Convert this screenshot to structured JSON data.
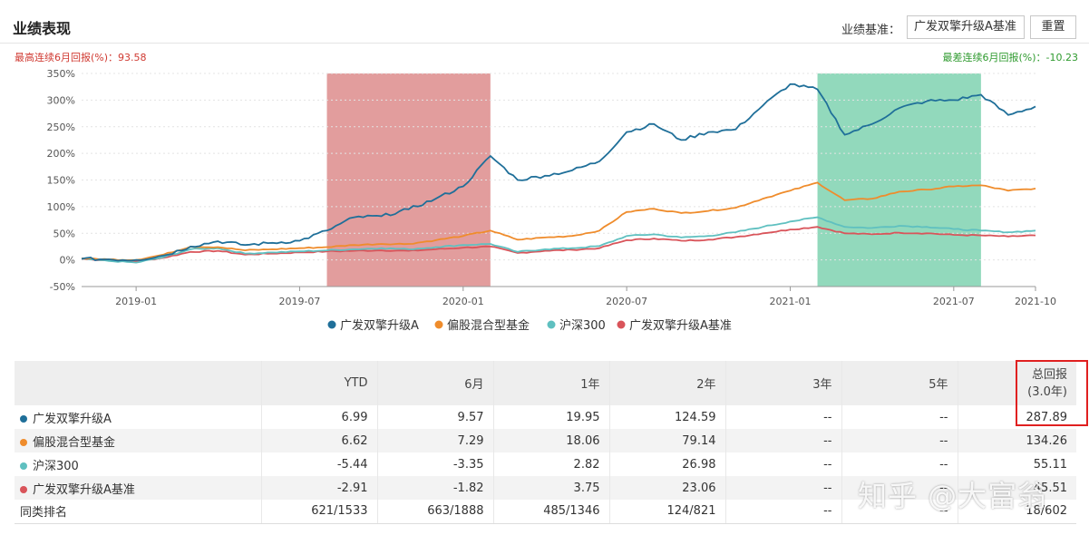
{
  "header": {
    "title": "业绩表现",
    "benchmark_label": "业绩基准：",
    "benchmark_value": "广发双擎升级A基准",
    "reset_label": "重置"
  },
  "stats": {
    "best": "最高连续6月回报(%)：93.58",
    "worst": "最差连续6月回报(%)：-10.23"
  },
  "colors": {
    "fund": "#1f6f99",
    "peer": "#ef8c2c",
    "hs300": "#5fc0c0",
    "bench": "#d9545a",
    "best_band": "#dd8c8c",
    "worst_band": "#7fd2b0"
  },
  "chart_data": {
    "type": "line",
    "title": "",
    "xlabel": "",
    "ylabel": "",
    "x_ticks": [
      "2019-01",
      "2019-07",
      "2020-01",
      "2020-07",
      "2021-01",
      "2021-07",
      "2021-10"
    ],
    "y_ticks": [
      "350%",
      "300%",
      "250%",
      "200%",
      "150%",
      "100%",
      "50%",
      "0%",
      "-50%"
    ],
    "ylim": [
      -50,
      350
    ],
    "xlim": [
      "2018-11",
      "2021-10"
    ],
    "grid": true,
    "legend_position": "bottom",
    "highlight_bands": [
      {
        "label": "best 6 months",
        "start": "2019-08",
        "end": "2020-02"
      },
      {
        "label": "worst 6 months",
        "start": "2021-02",
        "end": "2021-08"
      }
    ],
    "series": [
      {
        "name": "广发双擎升级A",
        "color": "#1f6f99",
        "points": [
          [
            "2018-11",
            2
          ],
          [
            "2018-12",
            1
          ],
          [
            "2019-01",
            0
          ],
          [
            "2019-02",
            8
          ],
          [
            "2019-03",
            25
          ],
          [
            "2019-04",
            35
          ],
          [
            "2019-05",
            28
          ],
          [
            "2019-06",
            32
          ],
          [
            "2019-07",
            36
          ],
          [
            "2019-08",
            55
          ],
          [
            "2019-09",
            80
          ],
          [
            "2019-10",
            82
          ],
          [
            "2019-11",
            95
          ],
          [
            "2019-12",
            115
          ],
          [
            "2020-01",
            138
          ],
          [
            "2020-02",
            195
          ],
          [
            "2020-03",
            150
          ],
          [
            "2020-04",
            158
          ],
          [
            "2020-05",
            168
          ],
          [
            "2020-06",
            185
          ],
          [
            "2020-07",
            240
          ],
          [
            "2020-08",
            255
          ],
          [
            "2020-09",
            225
          ],
          [
            "2020-10",
            240
          ],
          [
            "2020-11",
            245
          ],
          [
            "2020-12",
            290
          ],
          [
            "2021-01",
            330
          ],
          [
            "2021-02",
            320
          ],
          [
            "2021-03",
            235
          ],
          [
            "2021-04",
            255
          ],
          [
            "2021-05",
            285
          ],
          [
            "2021-06",
            298
          ],
          [
            "2021-07",
            300
          ],
          [
            "2021-08",
            310
          ],
          [
            "2021-09",
            272
          ],
          [
            "2021-10",
            288
          ]
        ]
      },
      {
        "name": "偏股混合型基金",
        "color": "#ef8c2c",
        "points": [
          [
            "2018-11",
            3
          ],
          [
            "2018-12",
            1
          ],
          [
            "2019-01",
            0
          ],
          [
            "2019-02",
            10
          ],
          [
            "2019-03",
            25
          ],
          [
            "2019-04",
            24
          ],
          [
            "2019-05",
            18
          ],
          [
            "2019-06",
            20
          ],
          [
            "2019-07",
            22
          ],
          [
            "2019-08",
            24
          ],
          [
            "2019-09",
            28
          ],
          [
            "2019-10",
            30
          ],
          [
            "2019-11",
            30
          ],
          [
            "2019-12",
            37
          ],
          [
            "2020-01",
            45
          ],
          [
            "2020-02",
            55
          ],
          [
            "2020-03",
            38
          ],
          [
            "2020-04",
            42
          ],
          [
            "2020-05",
            45
          ],
          [
            "2020-06",
            55
          ],
          [
            "2020-07",
            90
          ],
          [
            "2020-08",
            96
          ],
          [
            "2020-09",
            88
          ],
          [
            "2020-10",
            92
          ],
          [
            "2020-11",
            98
          ],
          [
            "2020-12",
            115
          ],
          [
            "2021-01",
            130
          ],
          [
            "2021-02",
            145
          ],
          [
            "2021-03",
            112
          ],
          [
            "2021-04",
            115
          ],
          [
            "2021-05",
            128
          ],
          [
            "2021-06",
            132
          ],
          [
            "2021-07",
            138
          ],
          [
            "2021-08",
            140
          ],
          [
            "2021-09",
            130
          ],
          [
            "2021-10",
            134
          ]
        ]
      },
      {
        "name": "沪深300",
        "color": "#5fc0c0",
        "points": [
          [
            "2018-11",
            2
          ],
          [
            "2018-12",
            -2
          ],
          [
            "2019-01",
            -5
          ],
          [
            "2019-02",
            5
          ],
          [
            "2019-03",
            20
          ],
          [
            "2019-04",
            22
          ],
          [
            "2019-05",
            12
          ],
          [
            "2019-06",
            14
          ],
          [
            "2019-07",
            16
          ],
          [
            "2019-08",
            18
          ],
          [
            "2019-09",
            20
          ],
          [
            "2019-10",
            22
          ],
          [
            "2019-11",
            20
          ],
          [
            "2019-12",
            24
          ],
          [
            "2020-01",
            28
          ],
          [
            "2020-02",
            30
          ],
          [
            "2020-03",
            15
          ],
          [
            "2020-04",
            20
          ],
          [
            "2020-05",
            22
          ],
          [
            "2020-06",
            26
          ],
          [
            "2020-07",
            45
          ],
          [
            "2020-08",
            48
          ],
          [
            "2020-09",
            42
          ],
          [
            "2020-10",
            45
          ],
          [
            "2020-11",
            52
          ],
          [
            "2020-12",
            62
          ],
          [
            "2021-01",
            72
          ],
          [
            "2021-02",
            80
          ],
          [
            "2021-03",
            62
          ],
          [
            "2021-04",
            60
          ],
          [
            "2021-05",
            64
          ],
          [
            "2021-06",
            62
          ],
          [
            "2021-07",
            58
          ],
          [
            "2021-08",
            55
          ],
          [
            "2021-09",
            52
          ],
          [
            "2021-10",
            55
          ]
        ]
      },
      {
        "name": "广发双擎升级A基准",
        "color": "#d9545a",
        "points": [
          [
            "2018-11",
            2
          ],
          [
            "2018-12",
            -1
          ],
          [
            "2019-01",
            -3
          ],
          [
            "2019-02",
            4
          ],
          [
            "2019-03",
            15
          ],
          [
            "2019-04",
            17
          ],
          [
            "2019-05",
            10
          ],
          [
            "2019-06",
            12
          ],
          [
            "2019-07",
            14
          ],
          [
            "2019-08",
            16
          ],
          [
            "2019-09",
            17
          ],
          [
            "2019-10",
            18
          ],
          [
            "2019-11",
            17
          ],
          [
            "2019-12",
            20
          ],
          [
            "2020-01",
            23
          ],
          [
            "2020-02",
            25
          ],
          [
            "2020-03",
            13
          ],
          [
            "2020-04",
            17
          ],
          [
            "2020-05",
            19
          ],
          [
            "2020-06",
            22
          ],
          [
            "2020-07",
            37
          ],
          [
            "2020-08",
            40
          ],
          [
            "2020-09",
            36
          ],
          [
            "2020-10",
            38
          ],
          [
            "2020-11",
            43
          ],
          [
            "2020-12",
            50
          ],
          [
            "2021-01",
            57
          ],
          [
            "2021-02",
            62
          ],
          [
            "2021-03",
            50
          ],
          [
            "2021-04",
            48
          ],
          [
            "2021-05",
            51
          ],
          [
            "2021-06",
            50
          ],
          [
            "2021-07",
            47
          ],
          [
            "2021-08",
            46
          ],
          [
            "2021-09",
            44
          ],
          [
            "2021-10",
            46
          ]
        ]
      }
    ]
  },
  "table": {
    "headers": [
      "",
      "YTD",
      "6月",
      "1年",
      "2年",
      "3年",
      "5年",
      "总回报"
    ],
    "total_sub": "(3.0年)",
    "rows": [
      {
        "name": "广发双擎升级A",
        "color": "#1f6f99",
        "values": [
          "6.99",
          "9.57",
          "19.95",
          "124.59",
          "--",
          "--",
          "287.89"
        ]
      },
      {
        "name": "偏股混合型基金",
        "color": "#ef8c2c",
        "values": [
          "6.62",
          "7.29",
          "18.06",
          "79.14",
          "--",
          "--",
          "134.26"
        ]
      },
      {
        "name": "沪深300",
        "color": "#5fc0c0",
        "values": [
          "-5.44",
          "-3.35",
          "2.82",
          "26.98",
          "--",
          "--",
          "55.11"
        ]
      },
      {
        "name": "广发双擎升级A基准",
        "color": "#d9545a",
        "values": [
          "-2.91",
          "-1.82",
          "3.75",
          "23.06",
          "--",
          "--",
          "45.51"
        ]
      },
      {
        "name": "同类排名",
        "color": "",
        "values": [
          "621/1533",
          "663/1888",
          "485/1346",
          "124/821",
          "--",
          "--",
          "18/602"
        ]
      }
    ]
  },
  "watermark": "知乎 @大富翁"
}
